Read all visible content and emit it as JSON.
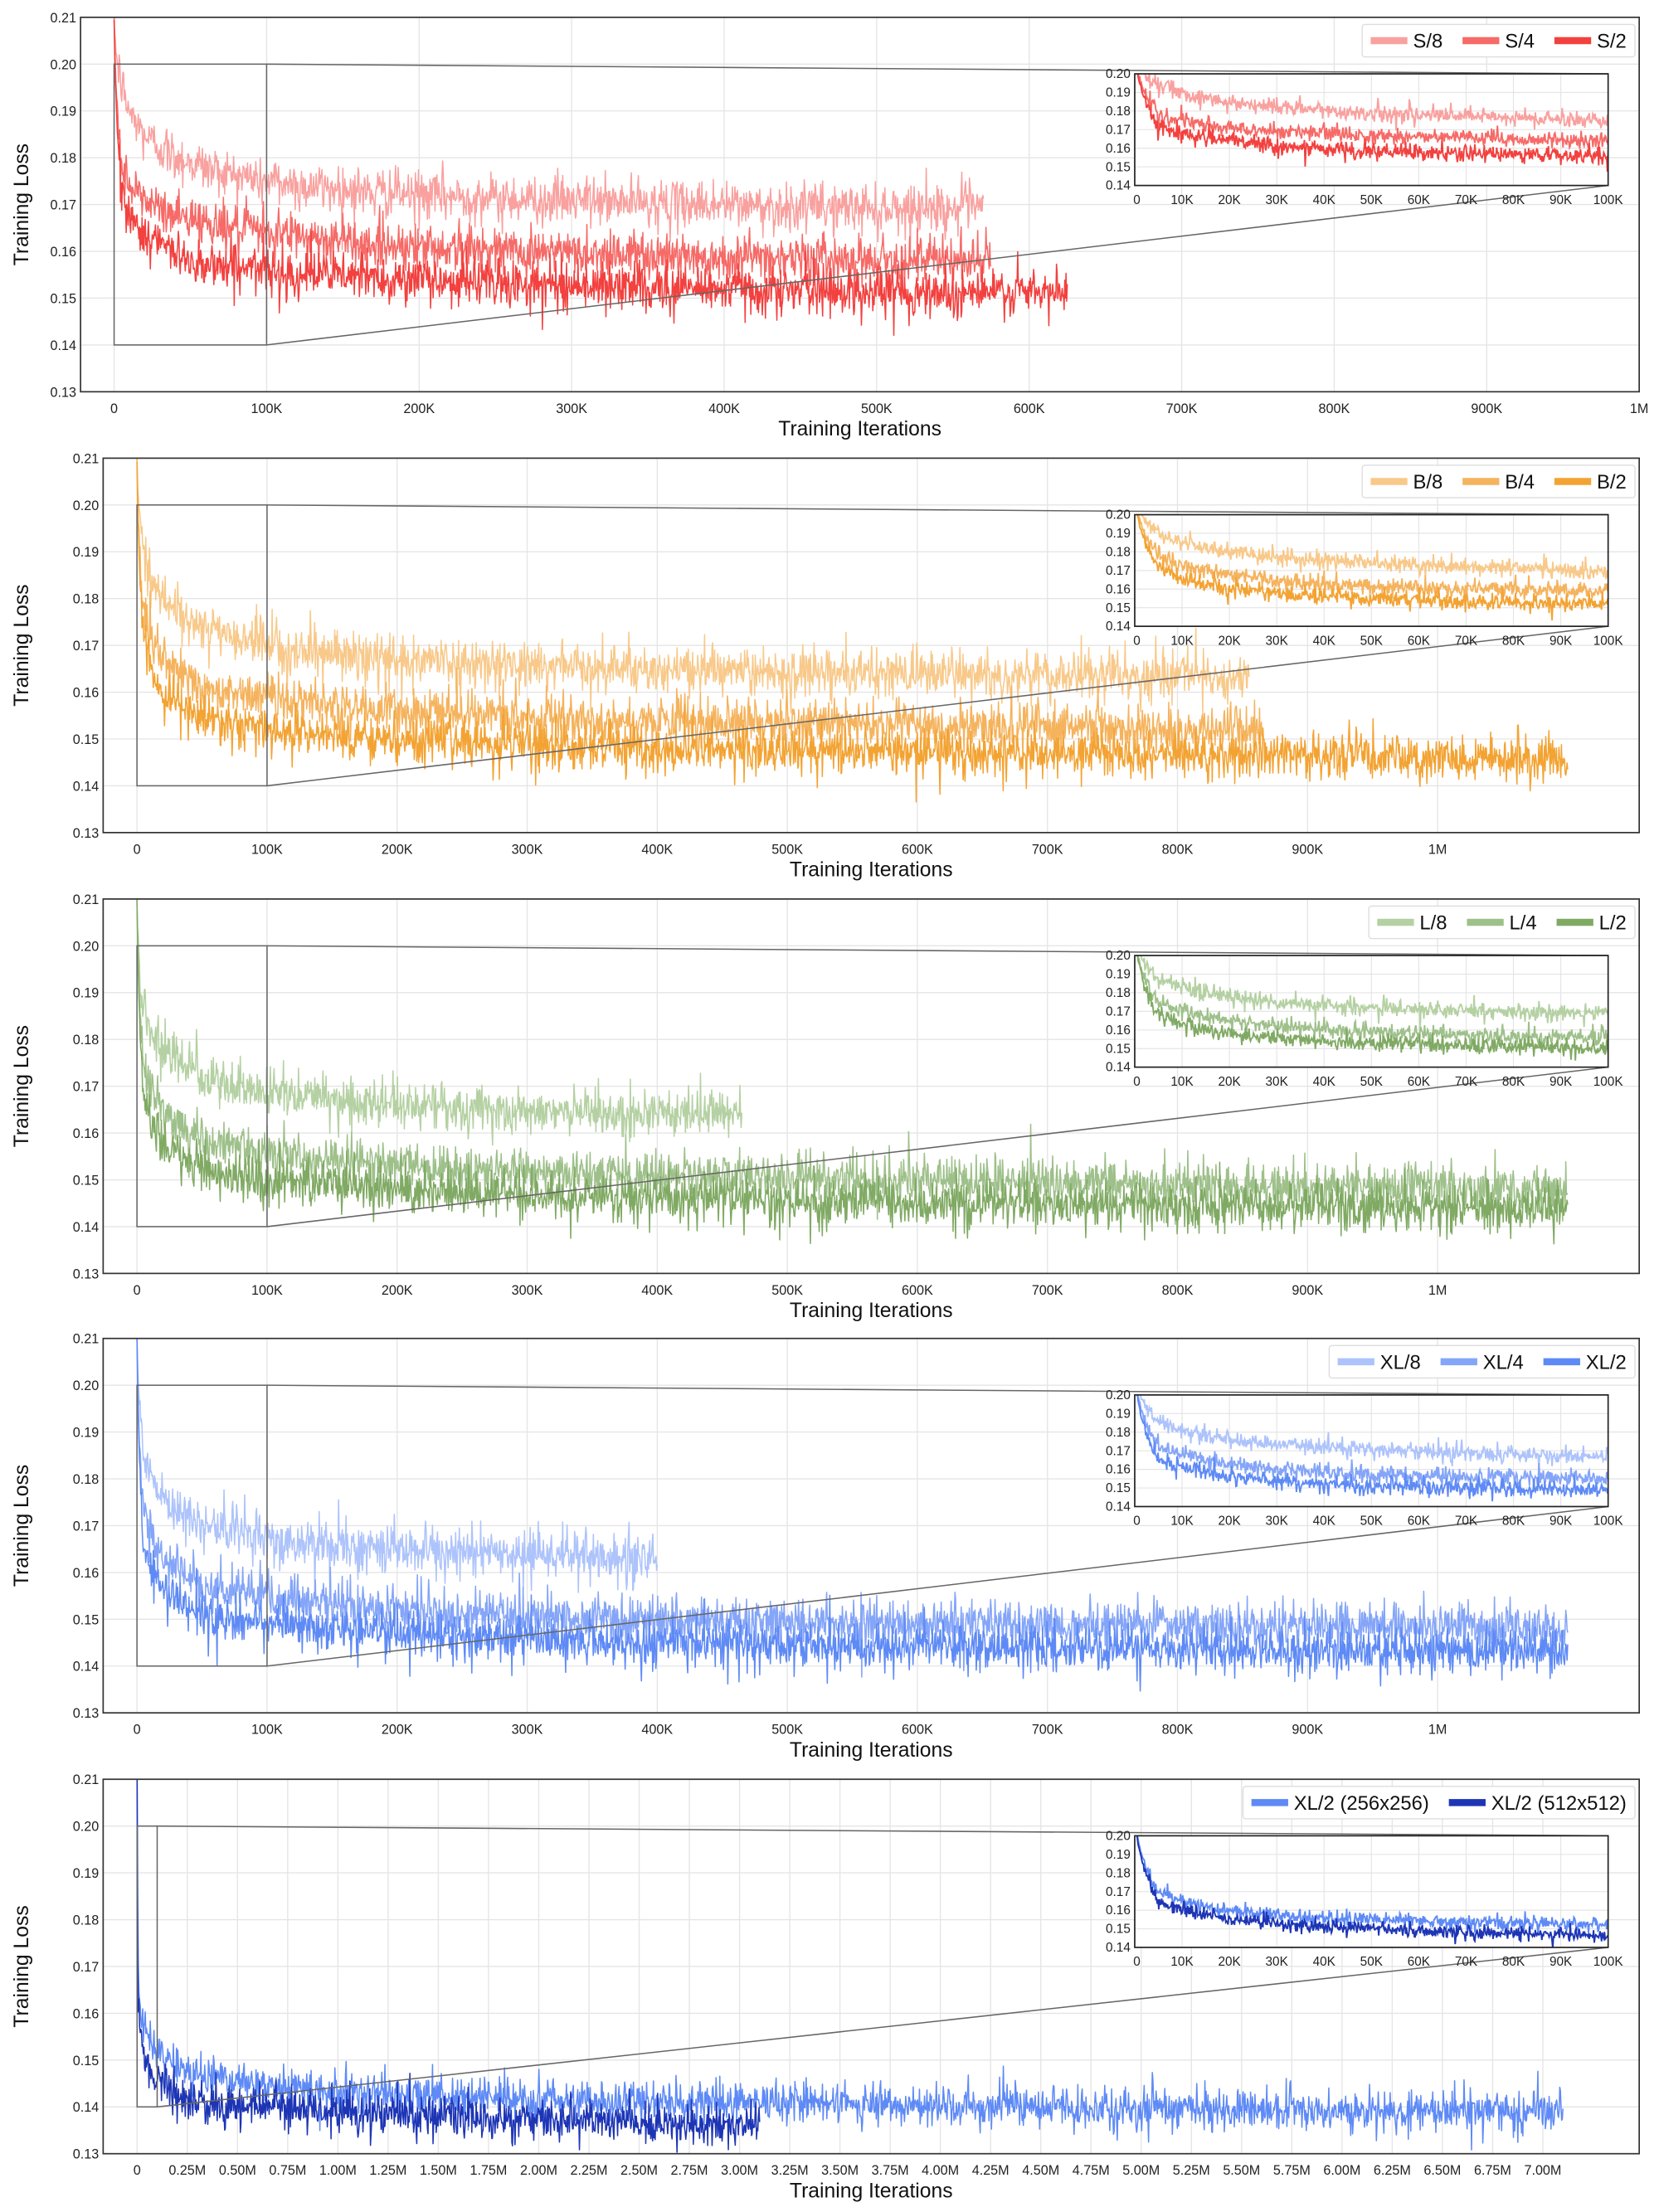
{
  "chart_data": [
    {
      "type": "line",
      "xlabel": "Training Iterations",
      "ylabel": "Training Loss",
      "xlim": [
        -22000,
        1000000
      ],
      "ylim": [
        0.13,
        0.21
      ],
      "grid": true,
      "legend": "top-right",
      "xticks": [
        0,
        100000,
        200000,
        300000,
        400000,
        500000,
        600000,
        700000,
        800000,
        900000,
        1000000
      ],
      "xtick_labels": [
        "0",
        "100K",
        "200K",
        "300K",
        "400K",
        "500K",
        "600K",
        "700K",
        "800K",
        "900K",
        "1M"
      ],
      "yticks": [
        0.13,
        0.14,
        0.15,
        0.16,
        0.17,
        0.18,
        0.19,
        0.2,
        0.21
      ],
      "ytick_labels": [
        "0.13",
        "0.14",
        "0.15",
        "0.16",
        "0.17",
        "0.18",
        "0.19",
        "0.20",
        "0.21"
      ],
      "noise_std": 0.0025,
      "series": [
        {
          "name": "S/8",
          "color": "#f9a19f",
          "points": [
            [
              0,
              0.21
            ],
            [
              5000,
              0.195
            ],
            [
              20000,
              0.185
            ],
            [
              50000,
              0.179
            ],
            [
              100000,
              0.175
            ],
            [
              200000,
              0.172
            ],
            [
              400000,
              0.17
            ],
            [
              570000,
              0.169
            ]
          ]
        },
        {
          "name": "S/4",
          "color": "#f66a67",
          "points": [
            [
              0,
              0.21
            ],
            [
              5000,
              0.178
            ],
            [
              20000,
              0.171
            ],
            [
              50000,
              0.167
            ],
            [
              100000,
              0.164
            ],
            [
              200000,
              0.161
            ],
            [
              400000,
              0.159
            ],
            [
              575000,
              0.158
            ]
          ]
        },
        {
          "name": "S/2",
          "color": "#f2413f",
          "points": [
            [
              0,
              0.21
            ],
            [
              5000,
              0.172
            ],
            [
              20000,
              0.164
            ],
            [
              50000,
              0.158
            ],
            [
              100000,
              0.156
            ],
            [
              200000,
              0.154
            ],
            [
              400000,
              0.152
            ],
            [
              625000,
              0.151
            ]
          ]
        }
      ],
      "inset": {
        "xlim": [
          0,
          100000
        ],
        "ylim": [
          0.14,
          0.2
        ],
        "xticks": [
          0,
          10000,
          20000,
          30000,
          40000,
          50000,
          60000,
          70000,
          80000,
          90000,
          100000
        ],
        "xtick_labels": [
          "0",
          "10K",
          "20K",
          "30K",
          "40K",
          "50K",
          "60K",
          "70K",
          "80K",
          "90K",
          "100K"
        ],
        "yticks": [
          0.14,
          0.15,
          0.16,
          0.17,
          0.18,
          0.19,
          0.2
        ],
        "ytick_labels": [
          "0.14",
          "0.15",
          "0.16",
          "0.17",
          "0.18",
          "0.19",
          "0.20"
        ]
      }
    },
    {
      "type": "line",
      "xlabel": "Training Iterations",
      "ylabel": "Training Loss",
      "xlim": [
        -26000,
        1155000
      ],
      "ylim": [
        0.13,
        0.21
      ],
      "grid": true,
      "legend": "top-right",
      "xticks": [
        0,
        100000,
        200000,
        300000,
        400000,
        500000,
        600000,
        700000,
        800000,
        900000,
        1000000
      ],
      "xtick_labels": [
        "0",
        "100K",
        "200K",
        "300K",
        "400K",
        "500K",
        "600K",
        "700K",
        "800K",
        "900K",
        "1M"
      ],
      "yticks": [
        0.13,
        0.14,
        0.15,
        0.16,
        0.17,
        0.18,
        0.19,
        0.2,
        0.21
      ],
      "ytick_labels": [
        "0.13",
        "0.14",
        "0.15",
        "0.16",
        "0.17",
        "0.18",
        "0.19",
        "0.20",
        "0.21"
      ],
      "noise_std": 0.0025,
      "series": [
        {
          "name": "B/8",
          "color": "#f8c98a",
          "points": [
            [
              0,
              0.21
            ],
            [
              5000,
              0.19
            ],
            [
              20000,
              0.18
            ],
            [
              50000,
              0.174
            ],
            [
              100000,
              0.17
            ],
            [
              200000,
              0.167
            ],
            [
              400000,
              0.165
            ],
            [
              855000,
              0.163
            ]
          ]
        },
        {
          "name": "B/4",
          "color": "#f5b35d",
          "points": [
            [
              0,
              0.21
            ],
            [
              5000,
              0.178
            ],
            [
              20000,
              0.168
            ],
            [
              50000,
              0.161
            ],
            [
              100000,
              0.159
            ],
            [
              200000,
              0.156
            ],
            [
              400000,
              0.154
            ],
            [
              865000,
              0.152
            ]
          ]
        },
        {
          "name": "B/2",
          "color": "#f3a333",
          "points": [
            [
              0,
              0.21
            ],
            [
              5000,
              0.172
            ],
            [
              20000,
              0.16
            ],
            [
              50000,
              0.155
            ],
            [
              100000,
              0.152
            ],
            [
              200000,
              0.15
            ],
            [
              400000,
              0.148
            ],
            [
              1100000,
              0.146
            ]
          ]
        }
      ],
      "inset": {
        "xlim": [
          0,
          100000
        ],
        "ylim": [
          0.14,
          0.2
        ],
        "xticks": [
          0,
          10000,
          20000,
          30000,
          40000,
          50000,
          60000,
          70000,
          80000,
          90000,
          100000
        ],
        "xtick_labels": [
          "0",
          "10K",
          "20K",
          "30K",
          "40K",
          "50K",
          "60K",
          "70K",
          "80K",
          "90K",
          "100K"
        ],
        "yticks": [
          0.14,
          0.15,
          0.16,
          0.17,
          0.18,
          0.19,
          0.2
        ],
        "ytick_labels": [
          "0.14",
          "0.15",
          "0.16",
          "0.17",
          "0.18",
          "0.19",
          "0.20"
        ]
      }
    },
    {
      "type": "line",
      "xlabel": "Training Iterations",
      "ylabel": "Training Loss",
      "xlim": [
        -26000,
        1155000
      ],
      "ylim": [
        0.13,
        0.21
      ],
      "grid": true,
      "legend": "top-right",
      "xticks": [
        0,
        100000,
        200000,
        300000,
        400000,
        500000,
        600000,
        700000,
        800000,
        900000,
        1000000
      ],
      "xtick_labels": [
        "0",
        "100K",
        "200K",
        "300K",
        "400K",
        "500K",
        "600K",
        "700K",
        "800K",
        "900K",
        "1M"
      ],
      "yticks": [
        0.13,
        0.14,
        0.15,
        0.16,
        0.17,
        0.18,
        0.19,
        0.2,
        0.21
      ],
      "ytick_labels": [
        "0.13",
        "0.14",
        "0.15",
        "0.16",
        "0.17",
        "0.18",
        "0.19",
        "0.20",
        "0.21"
      ],
      "noise_std": 0.0025,
      "series": [
        {
          "name": "L/8",
          "color": "#b5d1a3",
          "points": [
            [
              0,
              0.21
            ],
            [
              5000,
              0.188
            ],
            [
              20000,
              0.178
            ],
            [
              50000,
              0.172
            ],
            [
              100000,
              0.169
            ],
            [
              200000,
              0.166
            ],
            [
              465000,
              0.164
            ]
          ]
        },
        {
          "name": "L/4",
          "color": "#9ec08a",
          "points": [
            [
              0,
              0.21
            ],
            [
              5000,
              0.175
            ],
            [
              20000,
              0.165
            ],
            [
              50000,
              0.159
            ],
            [
              100000,
              0.156
            ],
            [
              200000,
              0.153
            ],
            [
              400000,
              0.151
            ],
            [
              1100000,
              0.148
            ]
          ]
        },
        {
          "name": "L/2",
          "color": "#80aa64",
          "points": [
            [
              0,
              0.21
            ],
            [
              5000,
              0.168
            ],
            [
              20000,
              0.158
            ],
            [
              50000,
              0.153
            ],
            [
              100000,
              0.15
            ],
            [
              200000,
              0.148
            ],
            [
              400000,
              0.146
            ],
            [
              1100000,
              0.144
            ]
          ]
        }
      ],
      "inset": {
        "xlim": [
          0,
          100000
        ],
        "ylim": [
          0.14,
          0.2
        ],
        "xticks": [
          0,
          10000,
          20000,
          30000,
          40000,
          50000,
          60000,
          70000,
          80000,
          90000,
          100000
        ],
        "xtick_labels": [
          "0",
          "10K",
          "20K",
          "30K",
          "40K",
          "50K",
          "60K",
          "70K",
          "80K",
          "90K",
          "100K"
        ],
        "yticks": [
          0.14,
          0.15,
          0.16,
          0.17,
          0.18,
          0.19,
          0.2
        ],
        "ytick_labels": [
          "0.14",
          "0.15",
          "0.16",
          "0.17",
          "0.18",
          "0.19",
          "0.20"
        ]
      }
    },
    {
      "type": "line",
      "xlabel": "Training Iterations",
      "ylabel": "Training Loss",
      "xlim": [
        -26000,
        1155000
      ],
      "ylim": [
        0.13,
        0.21
      ],
      "grid": true,
      "legend": "top-right",
      "xticks": [
        0,
        100000,
        200000,
        300000,
        400000,
        500000,
        600000,
        700000,
        800000,
        900000,
        1000000
      ],
      "xtick_labels": [
        "0",
        "100K",
        "200K",
        "300K",
        "400K",
        "500K",
        "600K",
        "700K",
        "800K",
        "900K",
        "1M"
      ],
      "yticks": [
        0.13,
        0.14,
        0.15,
        0.16,
        0.17,
        0.18,
        0.19,
        0.2,
        0.21
      ],
      "ytick_labels": [
        "0.13",
        "0.14",
        "0.15",
        "0.16",
        "0.17",
        "0.18",
        "0.19",
        "0.20",
        "0.21"
      ],
      "noise_std": 0.0025,
      "series": [
        {
          "name": "XL/8",
          "color": "#adc3fb",
          "points": [
            [
              0,
              0.21
            ],
            [
              5000,
              0.186
            ],
            [
              20000,
              0.176
            ],
            [
              50000,
              0.171
            ],
            [
              100000,
              0.167
            ],
            [
              200000,
              0.165
            ],
            [
              400000,
              0.163
            ]
          ]
        },
        {
          "name": "XL/4",
          "color": "#84a5f8",
          "points": [
            [
              0,
              0.21
            ],
            [
              5000,
              0.173
            ],
            [
              20000,
              0.163
            ],
            [
              50000,
              0.157
            ],
            [
              100000,
              0.155
            ],
            [
              200000,
              0.152
            ],
            [
              400000,
              0.15
            ],
            [
              1100000,
              0.148
            ]
          ]
        },
        {
          "name": "XL/2",
          "color": "#5e8af6",
          "points": [
            [
              0,
              0.21
            ],
            [
              5000,
              0.166
            ],
            [
              20000,
              0.156
            ],
            [
              50000,
              0.151
            ],
            [
              100000,
              0.149
            ],
            [
              200000,
              0.147
            ],
            [
              400000,
              0.145
            ],
            [
              1100000,
              0.143
            ]
          ]
        }
      ],
      "inset": {
        "xlim": [
          0,
          100000
        ],
        "ylim": [
          0.14,
          0.2
        ],
        "xticks": [
          0,
          10000,
          20000,
          30000,
          40000,
          50000,
          60000,
          70000,
          80000,
          90000,
          100000
        ],
        "xtick_labels": [
          "0",
          "10K",
          "20K",
          "30K",
          "40K",
          "50K",
          "60K",
          "70K",
          "80K",
          "90K",
          "100K"
        ],
        "yticks": [
          0.14,
          0.15,
          0.16,
          0.17,
          0.18,
          0.19,
          0.2
        ],
        "ytick_labels": [
          "0.14",
          "0.15",
          "0.16",
          "0.17",
          "0.18",
          "0.19",
          "0.20"
        ]
      }
    },
    {
      "type": "line",
      "xlabel": "Training Iterations",
      "ylabel": "Training Loss",
      "xlim": [
        -169000,
        7480000
      ],
      "ylim": [
        0.13,
        0.21
      ],
      "grid": true,
      "legend": "top-right",
      "xticks": [
        0,
        250000,
        500000,
        750000,
        1000000,
        1250000,
        1500000,
        1750000,
        2000000,
        2250000,
        2500000,
        2750000,
        3000000,
        3250000,
        3500000,
        3750000,
        4000000,
        4250000,
        4500000,
        4750000,
        5000000,
        5250000,
        5500000,
        5750000,
        6000000,
        6250000,
        6500000,
        6750000,
        7000000
      ],
      "xtick_labels": [
        "0",
        "0.25M",
        "0.50M",
        "0.75M",
        "1.00M",
        "1.25M",
        "1.50M",
        "1.75M",
        "2.00M",
        "2.25M",
        "2.50M",
        "2.75M",
        "3.00M",
        "3.25M",
        "3.50M",
        "3.75M",
        "4.00M",
        "4.25M",
        "4.50M",
        "4.75M",
        "5.00M",
        "5.25M",
        "5.50M",
        "5.75M",
        "6.00M",
        "6.25M",
        "6.50M",
        "6.75M",
        "7.00M"
      ],
      "yticks": [
        0.13,
        0.14,
        0.15,
        0.16,
        0.17,
        0.18,
        0.19,
        0.2,
        0.21
      ],
      "ytick_labels": [
        "0.13",
        "0.14",
        "0.15",
        "0.16",
        "0.17",
        "0.18",
        "0.19",
        "0.20",
        "0.21"
      ],
      "noise_std": 0.0022,
      "series": [
        {
          "name": "XL/2 (256x256)",
          "color": "#5e8af6",
          "points": [
            [
              0,
              0.21
            ],
            [
              5000,
              0.17
            ],
            [
              20000,
              0.16
            ],
            [
              50000,
              0.155
            ],
            [
              100000,
              0.152
            ],
            [
              300000,
              0.147
            ],
            [
              1000000,
              0.143
            ],
            [
              3000000,
              0.141
            ],
            [
              7100000,
              0.139
            ]
          ]
        },
        {
          "name": "XL/2 (512x512)",
          "color": "#1d35b5",
          "points": [
            [
              0,
              0.21
            ],
            [
              5000,
              0.165
            ],
            [
              20000,
              0.155
            ],
            [
              50000,
              0.15
            ],
            [
              100000,
              0.146
            ],
            [
              300000,
              0.141
            ],
            [
              1000000,
              0.139
            ],
            [
              3100000,
              0.136
            ]
          ]
        }
      ],
      "inset": {
        "xlim": [
          0,
          100000
        ],
        "ylim": [
          0.14,
          0.2
        ],
        "xticks": [
          0,
          10000,
          20000,
          30000,
          40000,
          50000,
          60000,
          70000,
          80000,
          90000,
          100000
        ],
        "xtick_labels": [
          "0",
          "10K",
          "20K",
          "30K",
          "40K",
          "50K",
          "60K",
          "70K",
          "80K",
          "90K",
          "100K"
        ],
        "yticks": [
          0.14,
          0.15,
          0.16,
          0.17,
          0.18,
          0.19,
          0.2
        ],
        "ytick_labels": [
          "0.14",
          "0.15",
          "0.16",
          "0.17",
          "0.18",
          "0.19",
          "0.20"
        ]
      }
    }
  ]
}
